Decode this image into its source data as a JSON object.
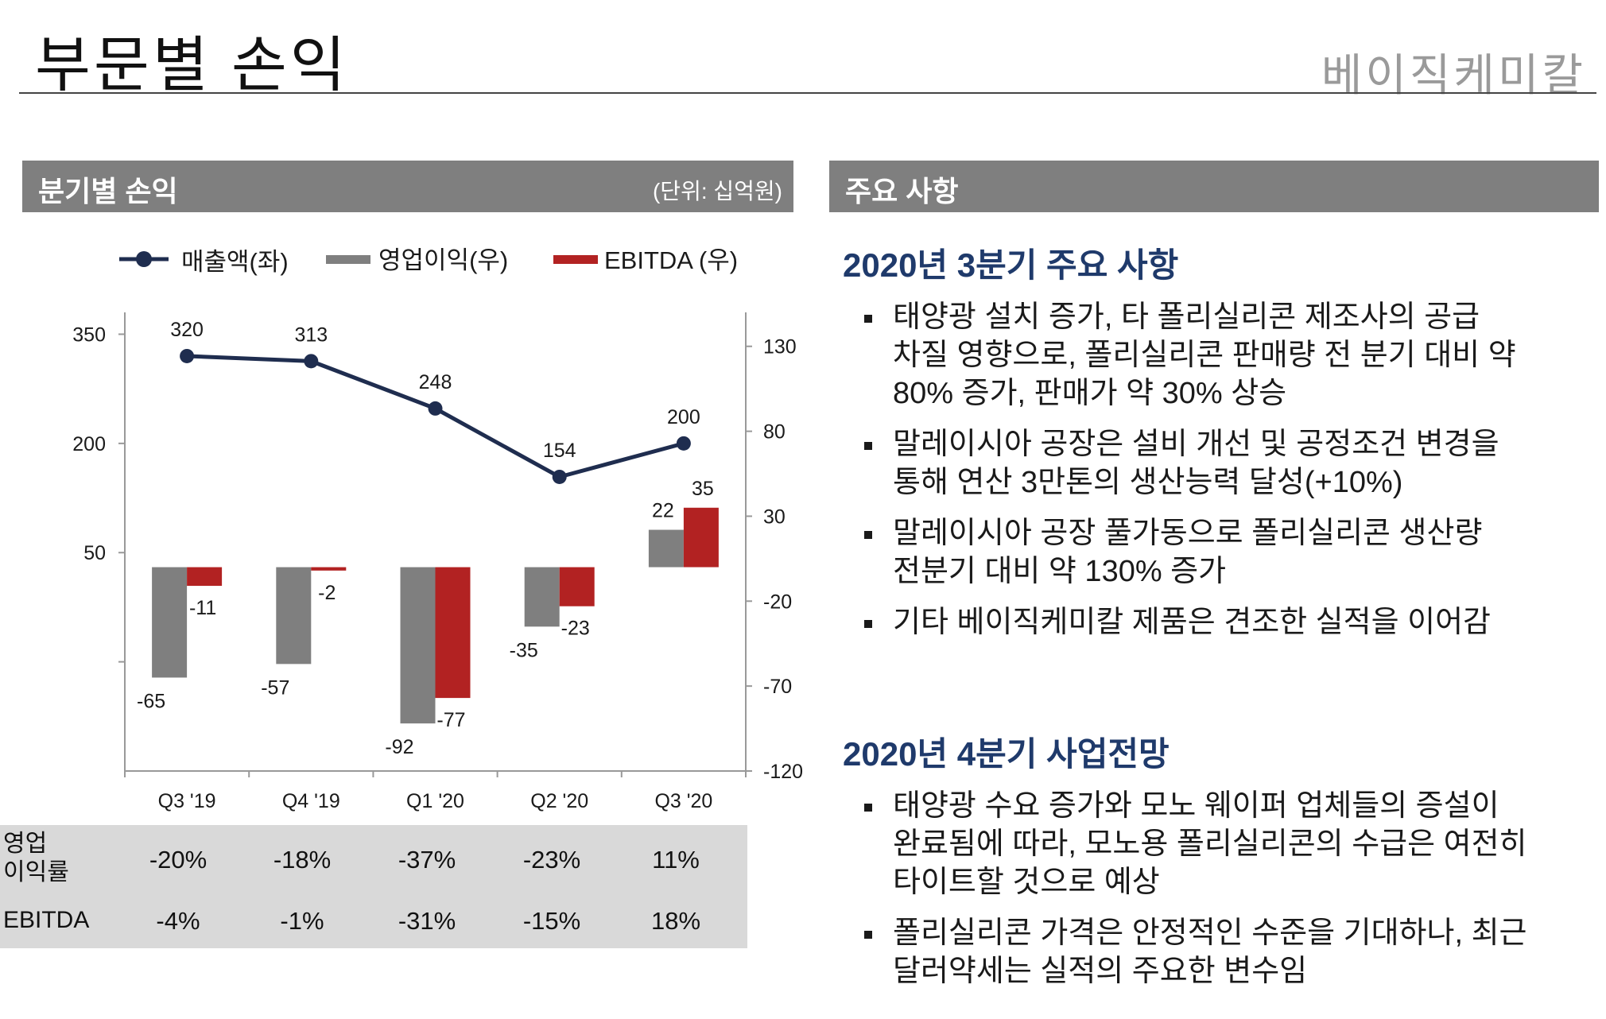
{
  "page": {
    "title": "부문별 손익",
    "brand": "베이직케미칼"
  },
  "left_header": {
    "title": "분기별 손익",
    "unit": "(단위: 십억원)"
  },
  "right_header": {
    "title": "주요 사항"
  },
  "chart_data": {
    "type": "bar+line",
    "legend": [
      "매출액(좌)",
      "영업이익(우)",
      "EBITDA (우)"
    ],
    "categories": [
      "Q3 '19",
      "Q4 '19",
      "Q1 '20",
      "Q2 '20",
      "Q3 '20"
    ],
    "series": [
      {
        "name": "매출액(좌)",
        "type": "line",
        "axis": "left",
        "values": [
          320,
          313,
          248,
          154,
          200
        ]
      },
      {
        "name": "영업이익(우)",
        "type": "bar",
        "axis": "right",
        "values": [
          -65,
          -57,
          -92,
          -35,
          22
        ]
      },
      {
        "name": "EBITDA (우)",
        "type": "bar",
        "axis": "right",
        "values": [
          -11,
          -2,
          -77,
          -23,
          35
        ]
      }
    ],
    "left_axis": {
      "ticks": [
        350,
        200,
        50
      ],
      "range": [
        -250,
        380
      ]
    },
    "right_axis": {
      "ticks": [
        130,
        80,
        30,
        -20,
        -70,
        -120
      ],
      "range": [
        -120,
        150
      ]
    },
    "colors": {
      "line": "#1f2d4f",
      "op": "#7f7f7f",
      "ebitda": "#b22222"
    }
  },
  "metrics": {
    "rows": [
      {
        "label_line1": "영업",
        "label_line2": "이익률",
        "values": [
          "-20%",
          "-18%",
          "-37%",
          "-23%",
          "11%"
        ]
      },
      {
        "label": "EBITDA",
        "values": [
          "-4%",
          "-1%",
          "-31%",
          "-15%",
          "18%"
        ]
      }
    ]
  },
  "highlights_q3": {
    "title": "2020년 3분기 주요 사항",
    "items": [
      {
        "l1": "태양광 설치 증가, 타 폴리실리콘 제조사의 공급",
        "l2": "차질 영향으로, 폴리실리콘 판매량 전 분기 대비 약",
        "l3": "80% 증가, 판매가 약 30% 상승"
      },
      {
        "l1": "말레이시아 공장은 설비 개선 및 공정조건 변경을",
        "l2": "통해 연산 3만톤의 생산능력 달성(+10%)"
      },
      {
        "l1": "말레이시아 공장 풀가동으로 폴리실리콘 생산량",
        "l2": "전분기 대비 약 130% 증가"
      },
      {
        "l1": "기타 베이직케미칼 제품은 견조한 실적을 이어감"
      }
    ]
  },
  "outlook_q4": {
    "title": "2020년 4분기 사업전망",
    "items": [
      {
        "l1": "태양광 수요 증가와 모노 웨이퍼 업체들의 증설이",
        "l2": "완료됨에 따라, 모노용 폴리실리콘의 수급은 여전히",
        "l3": "타이트할 것으로 예상"
      },
      {
        "l1": "폴리실리콘 가격은 안정적인 수준을 기대하나, 최근",
        "l2": "달러약세는 실적의 주요한 변수임"
      }
    ]
  }
}
